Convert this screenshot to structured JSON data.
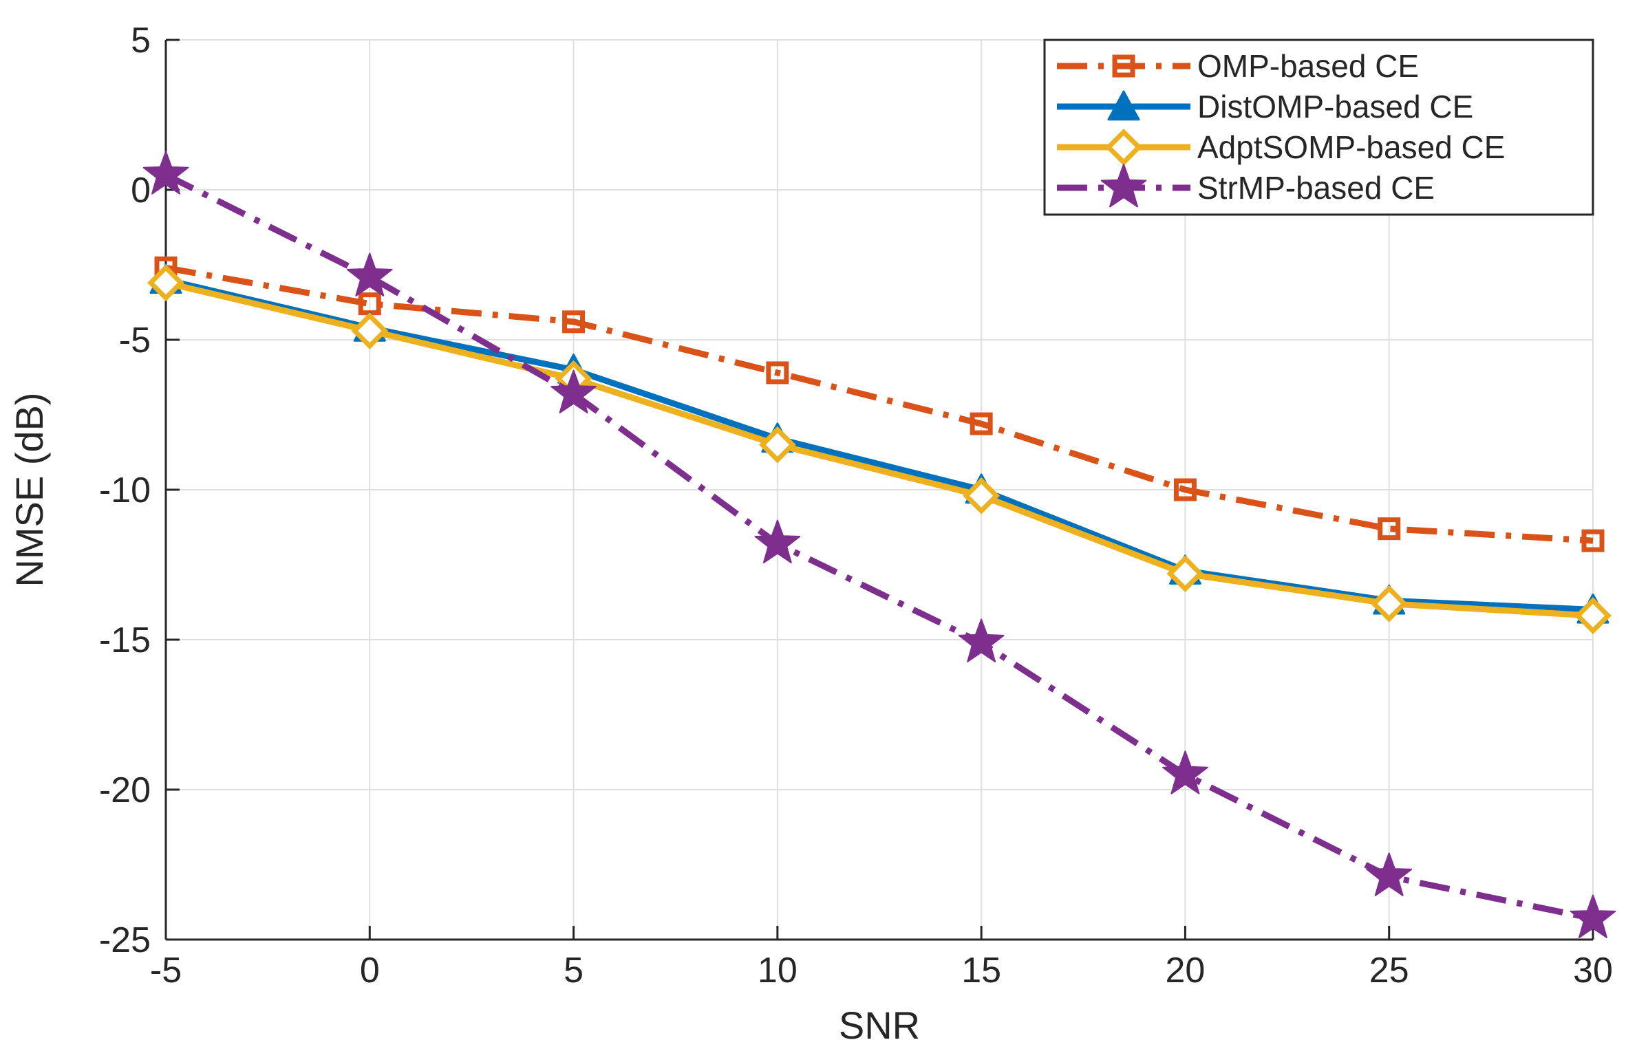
{
  "chart_data": {
    "type": "line",
    "title": "",
    "xlabel": "SNR",
    "ylabel": "NMSE (dB)",
    "xlim": [
      -5,
      30
    ],
    "ylim": [
      -25,
      5
    ],
    "grid": true,
    "legend_position": "top-right",
    "x": [
      -5,
      0,
      5,
      10,
      15,
      20,
      25,
      30
    ],
    "xticks": [
      "-5",
      "0",
      "5",
      "10",
      "15",
      "20",
      "25",
      "30"
    ],
    "yticks": [
      "5",
      "0",
      "-5",
      "-10",
      "-15",
      "-20",
      "-25"
    ],
    "series": [
      {
        "name": "OMP-based CE",
        "color": "#D95319",
        "dash": "dashdot",
        "marker": "square",
        "values": [
          -2.6,
          -3.8,
          -4.4,
          -6.1,
          -7.8,
          -10.0,
          -11.3,
          -11.7
        ]
      },
      {
        "name": "DistOMP-based CE",
        "color": "#0072BD",
        "dash": "solid",
        "marker": "triangle",
        "values": [
          -3.0,
          -4.6,
          -6.0,
          -8.3,
          -10.0,
          -12.7,
          -13.7,
          -14.0
        ]
      },
      {
        "name": "AdptSOMP-based CE",
        "color": "#EDB120",
        "dash": "solid",
        "marker": "diamond",
        "values": [
          -3.1,
          -4.7,
          -6.3,
          -8.5,
          -10.2,
          -12.8,
          -13.8,
          -14.2
        ]
      },
      {
        "name": "StrMP-based CE",
        "color": "#7E2F8E",
        "dash": "dashdot",
        "marker": "star",
        "values": [
          0.5,
          -2.9,
          -6.8,
          -11.8,
          -15.1,
          -19.5,
          -22.9,
          -24.3
        ]
      }
    ]
  }
}
